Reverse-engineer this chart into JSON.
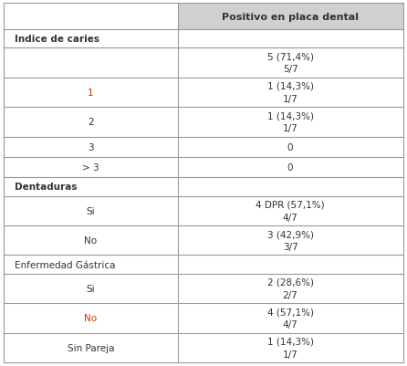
{
  "header_col2": "Positivo en placa dental",
  "rows": [
    {
      "col1": "Indice de caries",
      "col2": "",
      "col1_bold": true,
      "section": true
    },
    {
      "col1": "",
      "col2": "5 (71,4%)\n5/7",
      "col1_bold": false,
      "section": false
    },
    {
      "col1": "1",
      "col2": "1 (14,3%)\n1/7",
      "col1_bold": false,
      "section": false,
      "col1_color": "#cc3300"
    },
    {
      "col1": "2",
      "col2": "1 (14,3%)\n1/7",
      "col1_bold": false,
      "section": false,
      "col1_color": "#333333"
    },
    {
      "col1": "3",
      "col2": "0",
      "col1_bold": false,
      "section": false,
      "col1_color": "#333333"
    },
    {
      "col1": "> 3",
      "col2": "0",
      "col1_bold": false,
      "section": false,
      "col1_color": "#333333"
    },
    {
      "col1": "Dentaduras",
      "col2": "",
      "col1_bold": true,
      "section": true
    },
    {
      "col1": "Si",
      "col2": "4 DPR (57,1%)\n4/7",
      "col1_bold": false,
      "section": false,
      "col1_color": "#333333"
    },
    {
      "col1": "No",
      "col2": "3 (42,9%)\n3/7",
      "col1_bold": false,
      "section": false,
      "col1_color": "#333333"
    },
    {
      "col1": "Enfermedad Gástrica",
      "col2": "",
      "col1_bold": false,
      "section": true
    },
    {
      "col1": "Si",
      "col2": "2 (28,6%)\n2/7",
      "col1_bold": false,
      "section": false,
      "col1_color": "#333333"
    },
    {
      "col1": "No",
      "col2": "4 (57,1%)\n4/7",
      "col1_bold": false,
      "section": false,
      "col1_color": "#cc3300"
    },
    {
      "col1": "Sin Pareja",
      "col2": "1 (14,3%)\n1/7",
      "col1_bold": false,
      "section": false,
      "col1_color": "#333333"
    }
  ],
  "col_split": 0.435,
  "bg_color": "#ffffff",
  "border_color": "#999999",
  "header_bg": "#d0d0d0",
  "text_color": "#333333",
  "font_size": 7.5,
  "figsize": [
    4.46,
    4.02
  ],
  "dpi": 100
}
